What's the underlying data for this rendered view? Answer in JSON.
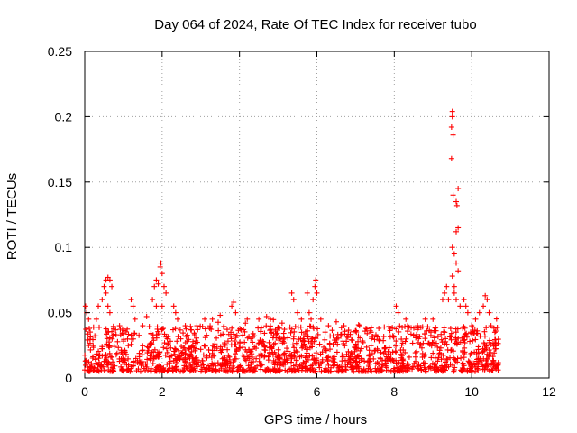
{
  "chart_data": {
    "type": "scatter",
    "title": "Day 064 of 2024, Rate Of TEC Index for receiver tubo",
    "xlabel": "GPS time / hours",
    "ylabel": "ROTI / TECUs",
    "xlim": [
      0,
      12
    ],
    "ylim": [
      0,
      0.25
    ],
    "xticks": [
      0,
      2,
      4,
      6,
      8,
      10,
      12
    ],
    "yticks": [
      0,
      0.05,
      0.1,
      0.15,
      0.2,
      0.25
    ],
    "xtick_labels": [
      "0",
      "2",
      "4",
      "6",
      "8",
      "10",
      "12"
    ],
    "ytick_labels": [
      "0",
      "0.05",
      "0.1",
      "0.15",
      "0.2",
      "0.25"
    ],
    "grid": true,
    "marker": "+",
    "color": "#ff0000",
    "series": [
      {
        "name": "ROTI",
        "x_range": [
          0.0,
          10.7
        ],
        "baseline_range": [
          0.005,
          0.04
        ],
        "points": [
          [
            0.02,
            0.055
          ],
          [
            0.05,
            0.05
          ],
          [
            0.1,
            0.045
          ],
          [
            0.3,
            0.045
          ],
          [
            0.35,
            0.055
          ],
          [
            0.45,
            0.06
          ],
          [
            0.5,
            0.07
          ],
          [
            0.55,
            0.075
          ],
          [
            0.6,
            0.077
          ],
          [
            0.65,
            0.075
          ],
          [
            0.7,
            0.07
          ],
          [
            0.55,
            0.065
          ],
          [
            0.6,
            0.055
          ],
          [
            0.65,
            0.05
          ],
          [
            0.9,
            0.04
          ],
          [
            1.2,
            0.06
          ],
          [
            1.25,
            0.055
          ],
          [
            1.3,
            0.045
          ],
          [
            1.5,
            0.04
          ],
          [
            1.6,
            0.047
          ],
          [
            1.75,
            0.06
          ],
          [
            1.8,
            0.07
          ],
          [
            1.85,
            0.075
          ],
          [
            1.9,
            0.072
          ],
          [
            1.95,
            0.085
          ],
          [
            1.97,
            0.088
          ],
          [
            2.0,
            0.08
          ],
          [
            2.05,
            0.07
          ],
          [
            2.1,
            0.065
          ],
          [
            1.85,
            0.055
          ],
          [
            2.0,
            0.055
          ],
          [
            2.3,
            0.055
          ],
          [
            2.35,
            0.05
          ],
          [
            2.4,
            0.045
          ],
          [
            2.6,
            0.04
          ],
          [
            2.9,
            0.04
          ],
          [
            3.1,
            0.045
          ],
          [
            3.3,
            0.045
          ],
          [
            3.5,
            0.048
          ],
          [
            3.8,
            0.055
          ],
          [
            3.85,
            0.058
          ],
          [
            3.9,
            0.05
          ],
          [
            4.2,
            0.045
          ],
          [
            4.5,
            0.045
          ],
          [
            4.7,
            0.047
          ],
          [
            4.8,
            0.045
          ],
          [
            5.1,
            0.042
          ],
          [
            5.35,
            0.065
          ],
          [
            5.4,
            0.06
          ],
          [
            5.5,
            0.05
          ],
          [
            5.6,
            0.045
          ],
          [
            5.75,
            0.065
          ],
          [
            5.8,
            0.05
          ],
          [
            5.85,
            0.045
          ],
          [
            5.9,
            0.06
          ],
          [
            5.95,
            0.07
          ],
          [
            5.97,
            0.075
          ],
          [
            6.0,
            0.065
          ],
          [
            6.1,
            0.045
          ],
          [
            6.3,
            0.04
          ],
          [
            6.5,
            0.043
          ],
          [
            6.7,
            0.04
          ],
          [
            7.1,
            0.04
          ],
          [
            7.4,
            0.035
          ],
          [
            7.6,
            0.038
          ],
          [
            8.05,
            0.055
          ],
          [
            8.1,
            0.05
          ],
          [
            8.3,
            0.045
          ],
          [
            8.6,
            0.04
          ],
          [
            8.8,
            0.045
          ],
          [
            9.0,
            0.045
          ],
          [
            9.25,
            0.06
          ],
          [
            9.3,
            0.065
          ],
          [
            9.35,
            0.07
          ],
          [
            9.4,
            0.06
          ],
          [
            9.5,
            0.204
          ],
          [
            9.5,
            0.2
          ],
          [
            9.48,
            0.192
          ],
          [
            9.52,
            0.186
          ],
          [
            9.48,
            0.168
          ],
          [
            9.52,
            0.14
          ],
          [
            9.6,
            0.135
          ],
          [
            9.65,
            0.145
          ],
          [
            9.62,
            0.132
          ],
          [
            9.6,
            0.112
          ],
          [
            9.65,
            0.115
          ],
          [
            9.5,
            0.1
          ],
          [
            9.55,
            0.095
          ],
          [
            9.6,
            0.088
          ],
          [
            9.65,
            0.082
          ],
          [
            9.5,
            0.078
          ],
          [
            9.55,
            0.07
          ],
          [
            9.55,
            0.065
          ],
          [
            9.6,
            0.06
          ],
          [
            9.7,
            0.055
          ],
          [
            9.8,
            0.06
          ],
          [
            9.85,
            0.055
          ],
          [
            9.9,
            0.05
          ],
          [
            10.0,
            0.04
          ],
          [
            10.1,
            0.045
          ],
          [
            10.2,
            0.05
          ],
          [
            10.3,
            0.055
          ],
          [
            10.35,
            0.063
          ],
          [
            10.4,
            0.06
          ],
          [
            10.45,
            0.05
          ],
          [
            10.5,
            0.04
          ],
          [
            10.6,
            0.035
          ]
        ]
      }
    ]
  }
}
